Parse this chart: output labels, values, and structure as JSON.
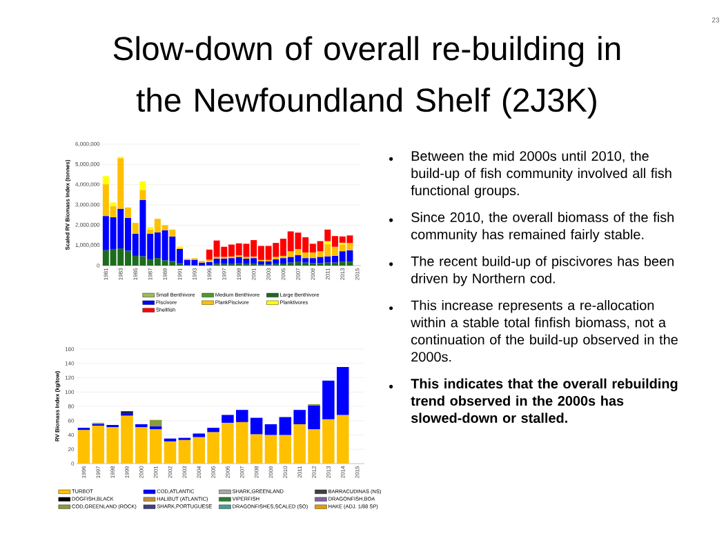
{
  "chart_data": [
    {
      "type": "other",
      "title": "Slow-down of overall re-building in the Newfoundland Shelf (2J3K)",
      "annotations": [
        "23",
        "Between the mid 2000s until 2010, the build-up of fish community involved all fish functional groups.",
        "Since 2010, the overall biomass of the fish community has remained fairly stable.",
        "The recent build-up of piscivores has been driven by Northern cod.",
        "This increase represents a re-allocation within a stable total finfish biomass, not a continuation of the build-up observed in the 2000s.",
        "This indicates that the overall rebuilding trend observed  in the 2000s has slowed-down or stalled."
      ]
    },
    {
      "type": "bar",
      "stacked": true,
      "ylabel": "Scaled RV Biomass Index (tonnes)",
      "grid": "y",
      "legend": "bottom",
      "categories": [
        "1981",
        null,
        "1983",
        null,
        "1985",
        null,
        "1987",
        null,
        "1989",
        null,
        "1991",
        null,
        "1993",
        null,
        "1995",
        null,
        "1997",
        null,
        "1999",
        null,
        "2001",
        null,
        "2003",
        null,
        "2005",
        null,
        "2007",
        null,
        "2009",
        null,
        "2011",
        null,
        "2013",
        null,
        "2015"
      ],
      "ylim": [
        0,
        6000000
      ],
      "yticks": [
        0,
        {
          "value": 1000000,
          "label": "1,000,000"
        },
        {
          "value": 2000000,
          "label": "2,000,000"
        },
        {
          "value": 3000000,
          "label": "3,000,000"
        },
        {
          "value": 4000000,
          "label": "4,000,000"
        },
        {
          "value": 5000000,
          "label": "5,000,000"
        },
        {
          "value": 6000000,
          "label": "6,000,000"
        }
      ],
      "series": [
        {
          "name": "Small Benthivore",
          "color": "#9bbb59",
          "values": [
            null,
            null,
            null,
            null,
            null,
            null,
            null,
            null,
            null,
            null,
            null,
            null,
            null,
            null,
            null,
            null,
            null,
            null,
            null,
            null,
            null,
            null,
            null,
            null,
            null,
            null,
            null,
            null,
            null,
            null,
            null,
            null,
            null,
            null,
            null
          ]
        },
        {
          "name": "Medium Benthivore",
          "color": "#4e9a2a",
          "values": [
            null,
            null,
            null,
            null,
            null,
            null,
            null,
            null,
            null,
            null,
            null,
            null,
            null,
            null,
            null,
            null,
            null,
            null,
            null,
            null,
            null,
            null,
            null,
            null,
            null,
            null,
            null,
            null,
            null,
            null,
            null,
            null,
            null,
            null,
            null
          ]
        },
        {
          "name": "Large Benthivore",
          "color": "#1e6b1e",
          "values": [
            760000,
            820000,
            850000,
            740000,
            480000,
            460000,
            310000,
            370000,
            260000,
            220000,
            110000,
            30000,
            30000,
            null,
            30000,
            90000,
            90000,
            80000,
            110000,
            80000,
            90000,
            60000,
            60000,
            80000,
            100000,
            150000,
            180000,
            150000,
            120000,
            120000,
            150000,
            150000,
            200000,
            200000,
            null
          ]
        },
        {
          "name": "Piscivore",
          "color": "#0000ff",
          "values": [
            1690000,
            1570000,
            1960000,
            1620000,
            1100000,
            2780000,
            1270000,
            1270000,
            1490000,
            1220000,
            710000,
            250000,
            260000,
            150000,
            150000,
            260000,
            260000,
            290000,
            320000,
            260000,
            280000,
            160000,
            160000,
            230000,
            270000,
            280000,
            340000,
            220000,
            250000,
            310000,
            310000,
            330000,
            510000,
            560000,
            null
          ]
        },
        {
          "name": "PlankPiscivore",
          "color": "#ffc000",
          "values": [
            1570000,
            560000,
            2500000,
            510000,
            530000,
            500000,
            200000,
            670000,
            250000,
            340000,
            60000,
            60000,
            70000,
            80000,
            110000,
            80000,
            80000,
            80000,
            80000,
            90000,
            80000,
            60000,
            60000,
            120000,
            110000,
            280000,
            300000,
            280000,
            280000,
            280000,
            600000,
            450000,
            330000,
            360000,
            null
          ]
        },
        {
          "name": "Planktivores",
          "color": "#ffff00",
          "values": [
            400000,
            170000,
            60000,
            null,
            null,
            420000,
            130000,
            null,
            null,
            null,
            60000,
            null,
            null,
            null,
            null,
            null,
            null,
            null,
            null,
            null,
            null,
            null,
            null,
            null,
            null,
            null,
            null,
            null,
            null,
            null,
            150000,
            null,
            90000,
            null,
            null
          ]
        },
        {
          "name": "Shellfish",
          "color": "#ff0000",
          "values": [
            null,
            null,
            null,
            null,
            null,
            null,
            null,
            null,
            null,
            null,
            null,
            null,
            null,
            null,
            500000,
            810000,
            500000,
            590000,
            590000,
            650000,
            810000,
            690000,
            690000,
            690000,
            850000,
            980000,
            810000,
            750000,
            430000,
            500000,
            570000,
            530000,
            310000,
            370000,
            null
          ]
        }
      ]
    },
    {
      "type": "bar",
      "stacked": true,
      "ylabel": "RV Biomass Index (kg/tow)",
      "grid": "y",
      "legend": "bottom",
      "categories": [
        "1996",
        "1997",
        "1998",
        "1999",
        "2000",
        "2001",
        "2002",
        "2003",
        "2004",
        "2005",
        "2006",
        "2007",
        "2008",
        "2009",
        "2010",
        "2011",
        "2012",
        "2013",
        "2014",
        "2015"
      ],
      "ylim": [
        0,
        160
      ],
      "yticks": [
        0,
        20,
        40,
        60,
        80,
        100,
        120,
        140,
        160
      ],
      "series": [
        {
          "name": "TURBOT",
          "color": "#ffc000",
          "values": [
            47,
            53,
            51,
            67,
            51,
            48,
            31,
            33,
            37,
            44,
            57,
            58,
            41,
            40,
            40,
            55,
            48,
            62,
            68,
            null
          ]
        },
        {
          "name": "COD,ATLANTIC",
          "color": "#0000ff",
          "values": [
            3,
            2,
            3,
            4,
            4,
            4,
            4,
            3,
            5,
            6,
            11,
            17,
            23,
            15,
            25,
            20,
            33,
            54,
            67,
            null
          ]
        },
        {
          "name": "SHARK,GREENLAND",
          "color": "#a6a6a6",
          "values": [
            null,
            null,
            null,
            null,
            null,
            null,
            null,
            null,
            null,
            null,
            null,
            null,
            null,
            null,
            null,
            null,
            null,
            null,
            null,
            null
          ]
        },
        {
          "name": "BARRACUDINAS (NS)",
          "color": "#404040",
          "values": [
            null,
            null,
            null,
            null,
            null,
            null,
            null,
            null,
            null,
            null,
            null,
            null,
            null,
            null,
            null,
            null,
            null,
            null,
            null,
            null
          ]
        },
        {
          "name": "DOGFISH,BLACK",
          "color": "#000000",
          "values": [
            null,
            null,
            null,
            2,
            null,
            null,
            null,
            null,
            null,
            null,
            null,
            null,
            null,
            null,
            null,
            null,
            null,
            null,
            null,
            null
          ]
        },
        {
          "name": "HALIBUT (ATLANTIC)",
          "color": "#c09040",
          "values": [
            null,
            null,
            null,
            null,
            null,
            null,
            null,
            null,
            null,
            null,
            null,
            null,
            null,
            null,
            null,
            null,
            null,
            null,
            null,
            null
          ]
        },
        {
          "name": "VIPERFISH",
          "color": "#2e7d32",
          "values": [
            null,
            null,
            null,
            null,
            null,
            null,
            null,
            null,
            null,
            null,
            null,
            null,
            null,
            null,
            null,
            null,
            null,
            null,
            null,
            null
          ]
        },
        {
          "name": "DRAGONFISH,BOA",
          "color": "#8064a2",
          "values": [
            null,
            null,
            null,
            null,
            null,
            null,
            null,
            null,
            null,
            null,
            null,
            null,
            null,
            null,
            null,
            null,
            null,
            null,
            null,
            null
          ]
        },
        {
          "name": "COD,GREENLAND (ROCK)",
          "color": "#8a9a3a",
          "values": [
            null,
            2,
            null,
            null,
            null,
            9,
            null,
            null,
            null,
            null,
            null,
            null,
            null,
            null,
            null,
            null,
            2,
            null,
            null,
            null
          ]
        },
        {
          "name": "SHARK,PORTUGUESE",
          "color": "#404080",
          "values": [
            null,
            null,
            null,
            null,
            null,
            null,
            null,
            null,
            null,
            null,
            null,
            null,
            null,
            null,
            null,
            null,
            null,
            null,
            null,
            null
          ]
        },
        {
          "name": "DRAGONFISHES,SCALED (SO)",
          "color": "#40a090",
          "values": [
            null,
            null,
            null,
            null,
            null,
            null,
            null,
            null,
            null,
            null,
            null,
            null,
            null,
            null,
            null,
            null,
            null,
            null,
            null,
            null
          ]
        },
        {
          "name": "HAKE (ADJ. 1/88 SP)",
          "color": "#e0a000",
          "values": [
            null,
            null,
            null,
            null,
            null,
            null,
            null,
            null,
            null,
            null,
            null,
            null,
            null,
            null,
            null,
            null,
            null,
            null,
            null,
            null
          ]
        }
      ]
    }
  ]
}
